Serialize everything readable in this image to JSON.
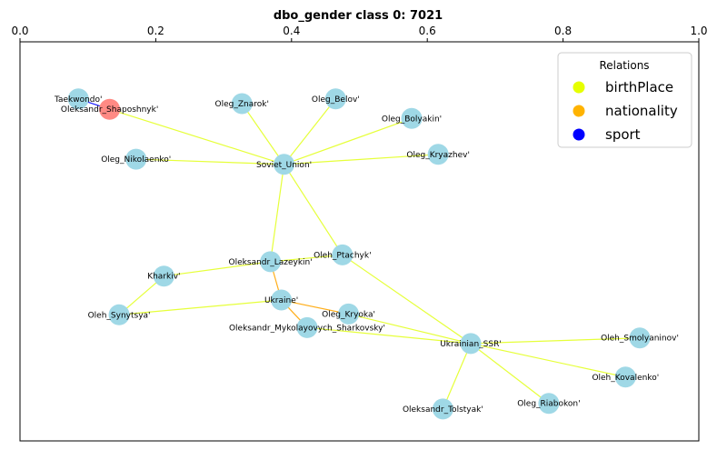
{
  "title": "dbo_gender class 0: 7021",
  "axis": {
    "ticks": [
      "0.0",
      "0.2",
      "0.4",
      "0.6",
      "0.8",
      "1.0"
    ],
    "tick_values": [
      0.0,
      0.2,
      0.4,
      0.6,
      0.8,
      1.0
    ],
    "range": [
      0.0,
      1.0
    ]
  },
  "legend": {
    "title": "Relations",
    "placement": "top-right",
    "items": [
      {
        "label": "birthPlace",
        "color": "#e6ff00"
      },
      {
        "label": "nationality",
        "color": "#ffb300"
      },
      {
        "label": "sport",
        "color": "#0000ff"
      }
    ]
  },
  "colors": {
    "node_default": "#9fd8e6",
    "node_highlight": "#ff8a84",
    "edge_birthPlace": "#e6ff3a",
    "edge_nationality": "#ffae1a",
    "edge_sport": "#1a1aff"
  },
  "chart_data": {
    "type": "network",
    "nodes": [
      {
        "id": "Taekwondo'",
        "x": 0.086,
        "y": 0.857,
        "highlight": false
      },
      {
        "id": "Oleksandr_Shaposhnyk'",
        "x": 0.132,
        "y": 0.831,
        "highlight": true
      },
      {
        "id": "Oleg_Znarok'",
        "x": 0.327,
        "y": 0.845,
        "highlight": false
      },
      {
        "id": "Oleg_Belov'",
        "x": 0.465,
        "y": 0.857,
        "highlight": false
      },
      {
        "id": "Oleg_Bolyakin'",
        "x": 0.577,
        "y": 0.808,
        "highlight": false
      },
      {
        "id": "Oleg_Nikolaenko'",
        "x": 0.171,
        "y": 0.706,
        "highlight": false
      },
      {
        "id": "Soviet_Union'",
        "x": 0.389,
        "y": 0.693,
        "highlight": false
      },
      {
        "id": "Oleg_Kryazhev'",
        "x": 0.616,
        "y": 0.718,
        "highlight": false
      },
      {
        "id": "Oleh_Ptachyk'",
        "x": 0.475,
        "y": 0.466,
        "highlight": false
      },
      {
        "id": "Oleksandr_Lazeykin'",
        "x": 0.369,
        "y": 0.449,
        "highlight": false
      },
      {
        "id": "Kharkiv'",
        "x": 0.212,
        "y": 0.413,
        "highlight": false
      },
      {
        "id": "Ukraine'",
        "x": 0.385,
        "y": 0.353,
        "highlight": false
      },
      {
        "id": "Oleg_Kryoka'",
        "x": 0.484,
        "y": 0.318,
        "highlight": false
      },
      {
        "id": "Oleh_Synytsya'",
        "x": 0.146,
        "y": 0.316,
        "highlight": false
      },
      {
        "id": "Oleksandr_Mykolayovych_Sharkovsky'",
        "x": 0.423,
        "y": 0.284,
        "highlight": false
      },
      {
        "id": "Ukrainian_SSR'",
        "x": 0.664,
        "y": 0.244,
        "highlight": false
      },
      {
        "id": "Oleh_Smolyaninov'",
        "x": 0.913,
        "y": 0.258,
        "highlight": false
      },
      {
        "id": "Oleh_Kovalenko'",
        "x": 0.892,
        "y": 0.16,
        "highlight": false
      },
      {
        "id": "Oleg_Riabokon'",
        "x": 0.779,
        "y": 0.094,
        "highlight": false
      },
      {
        "id": "Oleksandr_Tolstyak'",
        "x": 0.623,
        "y": 0.08,
        "highlight": false
      }
    ],
    "edges": [
      {
        "source": "Oleksandr_Shaposhnyk'",
        "target": "Taekwondo'",
        "relation": "sport"
      },
      {
        "source": "Oleksandr_Shaposhnyk'",
        "target": "Soviet_Union'",
        "relation": "birthPlace"
      },
      {
        "source": "Oleg_Znarok'",
        "target": "Soviet_Union'",
        "relation": "birthPlace"
      },
      {
        "source": "Oleg_Belov'",
        "target": "Soviet_Union'",
        "relation": "birthPlace"
      },
      {
        "source": "Oleg_Bolyakin'",
        "target": "Soviet_Union'",
        "relation": "birthPlace"
      },
      {
        "source": "Oleg_Nikolaenko'",
        "target": "Soviet_Union'",
        "relation": "birthPlace"
      },
      {
        "source": "Oleg_Kryazhev'",
        "target": "Soviet_Union'",
        "relation": "birthPlace"
      },
      {
        "source": "Oleh_Ptachyk'",
        "target": "Soviet_Union'",
        "relation": "birthPlace"
      },
      {
        "source": "Oleksandr_Lazeykin'",
        "target": "Soviet_Union'",
        "relation": "birthPlace"
      },
      {
        "source": "Oleh_Ptachyk'",
        "target": "Ukrainian_SSR'",
        "relation": "birthPlace"
      },
      {
        "source": "Oleksandr_Lazeykin'",
        "target": "Kharkiv'",
        "relation": "birthPlace"
      },
      {
        "source": "Oleksandr_Lazeykin'",
        "target": "Oleh_Ptachyk'",
        "relation": "birthPlace"
      },
      {
        "source": "Oleksandr_Lazeykin'",
        "target": "Ukraine'",
        "relation": "nationality"
      },
      {
        "source": "Oleh_Synytsya'",
        "target": "Kharkiv'",
        "relation": "birthPlace"
      },
      {
        "source": "Oleh_Synytsya'",
        "target": "Ukraine'",
        "relation": "birthPlace"
      },
      {
        "source": "Oleg_Kryoka'",
        "target": "Ukraine'",
        "relation": "nationality"
      },
      {
        "source": "Oleksandr_Mykolayovych_Sharkovsky'",
        "target": "Ukraine'",
        "relation": "nationality"
      },
      {
        "source": "Oleg_Kryoka'",
        "target": "Ukrainian_SSR'",
        "relation": "birthPlace"
      },
      {
        "source": "Oleksandr_Mykolayovych_Sharkovsky'",
        "target": "Ukrainian_SSR'",
        "relation": "birthPlace"
      },
      {
        "source": "Oleh_Smolyaninov'",
        "target": "Ukrainian_SSR'",
        "relation": "birthPlace"
      },
      {
        "source": "Oleh_Kovalenko'",
        "target": "Ukrainian_SSR'",
        "relation": "birthPlace"
      },
      {
        "source": "Oleg_Riabokon'",
        "target": "Ukrainian_SSR'",
        "relation": "birthPlace"
      },
      {
        "source": "Oleksandr_Tolstyak'",
        "target": "Ukrainian_SSR'",
        "relation": "birthPlace"
      }
    ]
  }
}
